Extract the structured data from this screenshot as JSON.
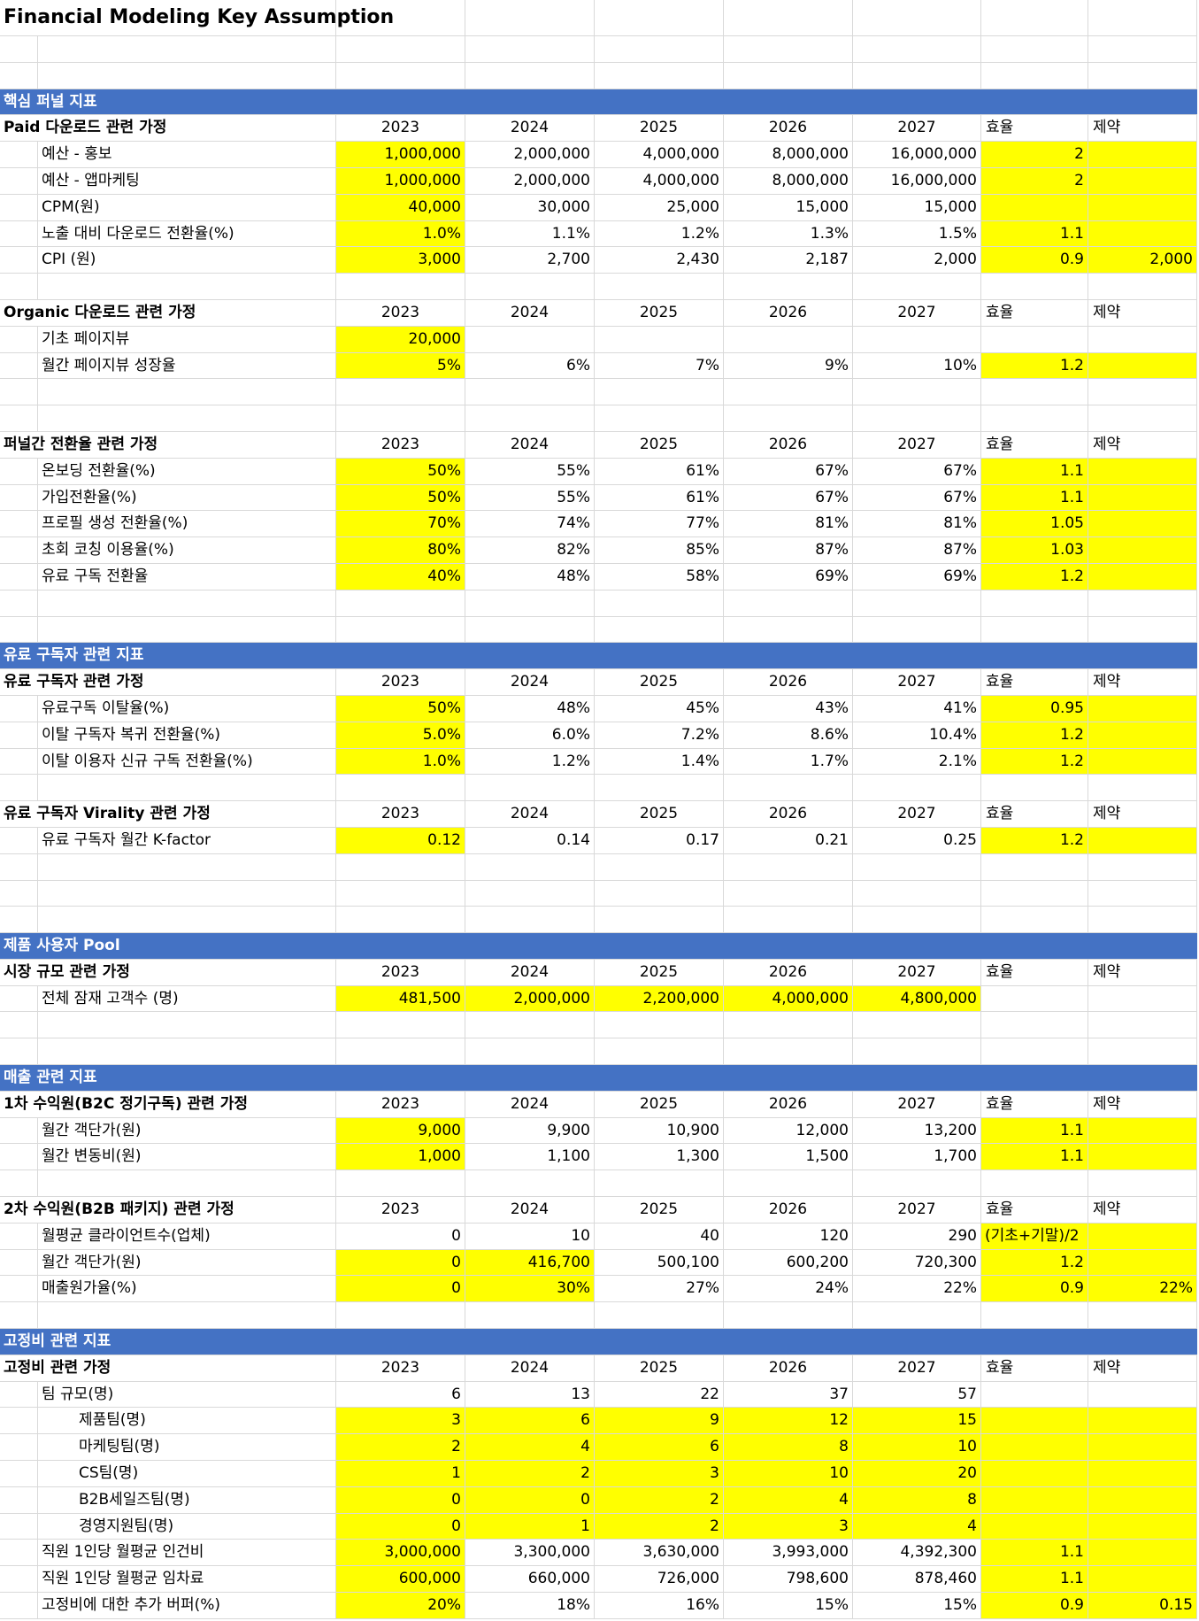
{
  "title": "Financial Modeling Key Assumption",
  "highlight_color": "#ffff00",
  "header_color": "#4472c4",
  "sections": [
    {
      "header": "핵심 퍼널 지표",
      "groups": [
        {
          "title": "Paid 다운로드 관련 가정",
          "columns": [
            "2023",
            "2024",
            "2025",
            "2026",
            "2027",
            "효율",
            "제약"
          ],
          "rows": [
            {
              "label": "예산 - 홍보",
              "cells": [
                "1,000,000",
                "2,000,000",
                "4,000,000",
                "8,000,000",
                "16,000,000",
                "2"
              ],
              "highlight": [
                0,
                5,
                6
              ]
            },
            {
              "label": "예산 - 앱마케팅",
              "cells": [
                "1,000,000",
                "2,000,000",
                "4,000,000",
                "8,000,000",
                "16,000,000",
                "2"
              ],
              "highlight": [
                0,
                5,
                6
              ]
            },
            {
              "label": "CPM(원)",
              "cells": [
                "40,000",
                "30,000",
                "25,000",
                "15,000",
                "15,000"
              ],
              "highlight": [
                0,
                5,
                6
              ]
            },
            {
              "label": "노출 대비 다운로드 전환율(%)",
              "cells": [
                "1.0%",
                "1.1%",
                "1.2%",
                "1.3%",
                "1.5%",
                "1.1"
              ],
              "highlight": [
                0,
                5,
                6
              ]
            },
            {
              "label": "CPI (원)",
              "cells": [
                "3,000",
                "2,700",
                "2,430",
                "2,187",
                "2,000",
                "0.9",
                "2,000"
              ],
              "highlight": [
                0,
                5,
                6
              ]
            }
          ]
        },
        {
          "title": "Organic 다운로드 관련 가정",
          "columns": [
            "2023",
            "2024",
            "2025",
            "2026",
            "2027",
            "효율",
            "제약"
          ],
          "rows": [
            {
              "label": "기초 페이지뷰",
              "cells": [
                "20,000"
              ],
              "highlight": [
                0
              ]
            },
            {
              "label": "월간 페이지뷰 성장율",
              "cells": [
                "5%",
                "6%",
                "7%",
                "9%",
                "10%",
                "1.2"
              ],
              "highlight": [
                0,
                5,
                6
              ]
            }
          ]
        },
        {
          "title": "퍼널간 전환율 관련 가정",
          "columns": [
            "2023",
            "2024",
            "2025",
            "2026",
            "2027",
            "효율",
            "제약"
          ],
          "rows": [
            {
              "label": "온보딩 전환율(%)",
              "cells": [
                "50%",
                "55%",
                "61%",
                "67%",
                "67%",
                "1.1"
              ],
              "highlight": [
                0,
                5,
                6
              ]
            },
            {
              "label": "가입전환율(%)",
              "cells": [
                "50%",
                "55%",
                "61%",
                "67%",
                "67%",
                "1.1"
              ],
              "highlight": [
                0,
                5,
                6
              ]
            },
            {
              "label": "프로필 생성 전환율(%)",
              "cells": [
                "70%",
                "74%",
                "77%",
                "81%",
                "81%",
                "1.05"
              ],
              "highlight": [
                0,
                5,
                6
              ]
            },
            {
              "label": "초회 코칭 이용율(%)",
              "cells": [
                "80%",
                "82%",
                "85%",
                "87%",
                "87%",
                "1.03"
              ],
              "highlight": [
                0,
                5,
                6
              ]
            },
            {
              "label": "유료 구독 전환율",
              "cells": [
                "40%",
                "48%",
                "58%",
                "69%",
                "69%",
                "1.2"
              ],
              "highlight": [
                0,
                5,
                6
              ]
            }
          ]
        }
      ]
    },
    {
      "header": "유료 구독자 관련 지표",
      "groups": [
        {
          "title": "유료 구독자 관련 가정",
          "columns": [
            "2023",
            "2024",
            "2025",
            "2026",
            "2027",
            "효율",
            "제약"
          ],
          "rows": [
            {
              "label": "유료구독 이탈율(%)",
              "cells": [
                "50%",
                "48%",
                "45%",
                "43%",
                "41%",
                "0.95"
              ],
              "highlight": [
                0,
                5,
                6
              ]
            },
            {
              "label": "이탈 구독자 복귀 전환율(%)",
              "cells": [
                "5.0%",
                "6.0%",
                "7.2%",
                "8.6%",
                "10.4%",
                "1.2"
              ],
              "highlight": [
                0,
                5,
                6
              ]
            },
            {
              "label": "이탈 이용자 신규 구독 전환율(%)",
              "cells": [
                "1.0%",
                "1.2%",
                "1.4%",
                "1.7%",
                "2.1%",
                "1.2"
              ],
              "highlight": [
                0,
                5,
                6
              ]
            }
          ]
        },
        {
          "title": "유료 구독자 Virality 관련 가정",
          "columns": [
            "2023",
            "2024",
            "2025",
            "2026",
            "2027",
            "효율",
            "제약"
          ],
          "rows": [
            {
              "label": "유료 구독자 월간 K-factor",
              "cells": [
                "0.12",
                "0.14",
                "0.17",
                "0.21",
                "0.25",
                "1.2"
              ],
              "highlight": [
                0,
                5,
                6
              ]
            }
          ]
        }
      ]
    },
    {
      "header": "제품 사용자 Pool",
      "groups": [
        {
          "title": "시장 규모 관련 가정",
          "columns": [
            "2023",
            "2024",
            "2025",
            "2026",
            "2027",
            "효율",
            "제약"
          ],
          "rows": [
            {
              "label": "전체 잠재 고객수 (명)",
              "cells": [
                "481,500",
                "2,000,000",
                "2,200,000",
                "4,000,000",
                "4,800,000"
              ],
              "highlight": [
                0,
                1,
                2,
                3,
                4
              ]
            }
          ]
        }
      ]
    },
    {
      "header": "매출 관련 지표",
      "groups": [
        {
          "title": "1차 수익원(B2C 정기구독) 관련 가정",
          "columns": [
            "2023",
            "2024",
            "2025",
            "2026",
            "2027",
            "효율",
            "제약"
          ],
          "rows": [
            {
              "label": "월간 객단가(원)",
              "cells": [
                "9,000",
                "9,900",
                "10,900",
                "12,000",
                "13,200",
                "1.1"
              ],
              "highlight": [
                0,
                5,
                6
              ]
            },
            {
              "label": "월간 변동비(원)",
              "cells": [
                "1,000",
                "1,100",
                "1,300",
                "1,500",
                "1,700",
                "1.1"
              ],
              "highlight": [
                0,
                5,
                6
              ]
            }
          ]
        },
        {
          "title": "2차 수익원(B2B 패키지) 관련 가정",
          "columns": [
            "2023",
            "2024",
            "2025",
            "2026",
            "2027",
            "효율",
            "제약"
          ],
          "rows": [
            {
              "label": "월평균 클라이언트수(업체)",
              "cells": [
                "0",
                "10",
                "40",
                "120",
                "290",
                "(기초+기말)/2"
              ],
              "highlight": [
                5,
                6
              ]
            },
            {
              "label": "월간 객단가(원)",
              "cells": [
                "0",
                "416,700",
                "500,100",
                "600,200",
                "720,300",
                "1.2"
              ],
              "highlight": [
                0,
                1,
                5,
                6
              ]
            },
            {
              "label": "매출원가율(%)",
              "cells": [
                "0",
                "30%",
                "27%",
                "24%",
                "22%",
                "0.9",
                "22%"
              ],
              "highlight": [
                0,
                1,
                5,
                6
              ]
            }
          ]
        }
      ]
    },
    {
      "header": "고정비 관련 지표",
      "groups": [
        {
          "title": "고정비 관련 가정",
          "columns": [
            "2023",
            "2024",
            "2025",
            "2026",
            "2027",
            "효율",
            "제약"
          ],
          "rows": [
            {
              "label": "팀 규모(명)",
              "cells": [
                "6",
                "13",
                "22",
                "37",
                "57"
              ],
              "children": [
                {
                  "label": "제품팀(명)",
                  "cells": [
                    "3",
                    "6",
                    "9",
                    "12",
                    "15"
                  ],
                  "highlight": [
                    0,
                    1,
                    2,
                    3,
                    4,
                    5,
                    6
                  ]
                },
                {
                  "label": "마케팅팀(명)",
                  "cells": [
                    "2",
                    "4",
                    "6",
                    "8",
                    "10"
                  ],
                  "highlight": [
                    0,
                    1,
                    2,
                    3,
                    4,
                    5,
                    6
                  ]
                },
                {
                  "label": "CS팀(명)",
                  "cells": [
                    "1",
                    "2",
                    "3",
                    "10",
                    "20"
                  ],
                  "highlight": [
                    0,
                    1,
                    2,
                    3,
                    4,
                    5,
                    6
                  ]
                },
                {
                  "label": "B2B세일즈팀(명)",
                  "cells": [
                    "0",
                    "0",
                    "2",
                    "4",
                    "8"
                  ],
                  "highlight": [
                    0,
                    1,
                    2,
                    3,
                    4,
                    5,
                    6
                  ]
                },
                {
                  "label": "경영지원팀(명)",
                  "cells": [
                    "0",
                    "1",
                    "2",
                    "3",
                    "4"
                  ],
                  "highlight": [
                    0,
                    1,
                    2,
                    3,
                    4,
                    5,
                    6
                  ]
                }
              ]
            },
            {
              "label": "직원 1인당 월평균 인건비",
              "cells": [
                "3,000,000",
                "3,300,000",
                "3,630,000",
                "3,993,000",
                "4,392,300",
                "1.1"
              ],
              "highlight": [
                0,
                5,
                6
              ]
            },
            {
              "label": "직원 1인당 월평균 임차료",
              "cells": [
                "600,000",
                "660,000",
                "726,000",
                "798,600",
                "878,460",
                "1.1"
              ],
              "highlight": [
                0,
                5,
                6
              ]
            },
            {
              "label": "고정비에 대한 추가 버퍼(%)",
              "cells": [
                "20%",
                "18%",
                "16%",
                "15%",
                "15%",
                "0.9",
                "0.15"
              ],
              "highlight": [
                0,
                5,
                6
              ]
            }
          ]
        }
      ]
    }
  ]
}
